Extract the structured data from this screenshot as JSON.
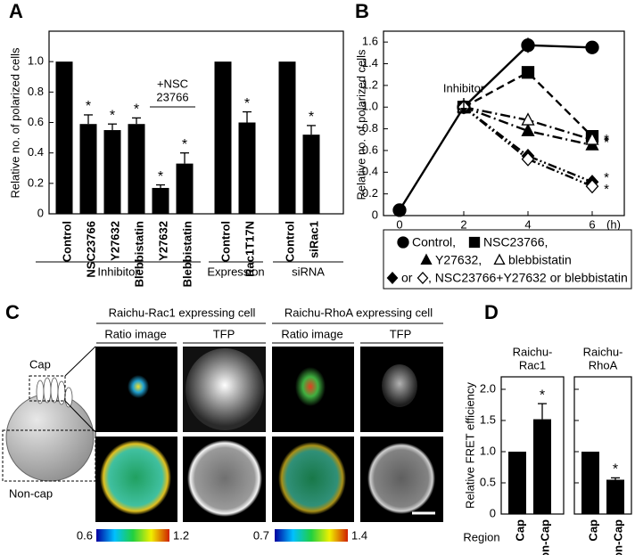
{
  "panel_labels": [
    "A",
    "B",
    "C",
    "D"
  ],
  "chart_data": [
    {
      "type": "bar",
      "y_label": "Relative no. of polarized cells",
      "categories": [
        "Control",
        "NSC23766",
        "Y27632",
        "Blebbistatin",
        "Y27632",
        "Blebbistatin",
        "Control",
        "Rac1T17N",
        "Control",
        "siRac1"
      ],
      "values": [
        1.0,
        0.59,
        0.55,
        0.59,
        0.17,
        0.33,
        1.0,
        0.6,
        1.0,
        0.52
      ],
      "errors": [
        null,
        0.06,
        0.04,
        0.04,
        0.02,
        0.07,
        null,
        0.07,
        null,
        0.06
      ],
      "significance": [
        null,
        "*",
        "*",
        "*",
        "*",
        "*",
        null,
        "*",
        null,
        "*"
      ],
      "color": "#000000",
      "ylim": [
        0,
        1.2
      ],
      "yticks": [
        0,
        0.2,
        0.4,
        0.6,
        0.8,
        {
          "value": 1.0,
          "label": "1.0"
        }
      ],
      "groups": [
        {
          "label": "Inhibitor",
          "count": 6
        },
        {
          "label": "Expression",
          "count": 2
        },
        {
          "label": "siRNA",
          "count": 2
        }
      ],
      "annotation": [
        "+NSC",
        "23766"
      ]
    },
    {
      "type": "line",
      "y_label": "Relative no. of polarized cells",
      "x_label": "(h)",
      "x": [
        0,
        2,
        4,
        6
      ],
      "xlim": [
        -0.5,
        7
      ],
      "xticks": [
        0,
        2,
        4,
        6
      ],
      "ylim": [
        0,
        1.7
      ],
      "yticks": [
        0,
        0.2,
        0.4,
        0.6,
        0.8,
        {
          "value": 1.0,
          "label": "1.0"
        },
        1.2,
        1.4,
        1.6
      ],
      "annotation": "Inhibitor",
      "series": [
        {
          "name": "Control,",
          "marker": "circle",
          "filled": true,
          "dash": "solid",
          "values": [
            0.05,
            1.0,
            1.57,
            1.55
          ],
          "errors": [
            null,
            null,
            0.07,
            0.05
          ],
          "significance": null
        },
        {
          "name": "NSC23766,",
          "marker": "square",
          "filled": true,
          "dash": "dashed",
          "values": [
            null,
            1.0,
            1.32,
            0.73
          ],
          "errors": [
            null,
            null,
            0.04,
            0.05
          ],
          "significance": "*"
        },
        {
          "name": "Y27632,",
          "marker": "triangle",
          "filled": true,
          "dash": "dashdot",
          "values": [
            null,
            1.0,
            0.78,
            0.65
          ],
          "errors": [
            null,
            null,
            null,
            null
          ],
          "significance": "*"
        },
        {
          "name": "blebbistatin",
          "marker": "triangle",
          "filled": false,
          "dash": "dashdot",
          "values": [
            null,
            1.0,
            0.88,
            0.7
          ],
          "errors": [
            null,
            null,
            null,
            null
          ],
          "significance": "*"
        },
        {
          "name": "or",
          "marker": "diamond",
          "filled": true,
          "dash": "dashdotdot",
          "values": [
            null,
            1.0,
            0.55,
            0.31
          ],
          "errors": [
            null,
            null,
            null,
            null
          ],
          "significance": "*"
        },
        {
          "name": ", NSC23766+Y27632 or blebbistatin",
          "marker": "diamond",
          "filled": false,
          "dash": "dashdotdot",
          "values": [
            null,
            1.0,
            0.52,
            0.27
          ],
          "errors": [
            null,
            null,
            null,
            null
          ],
          "significance": "*"
        }
      ]
    },
    {
      "type": "bar",
      "title": [
        "Raichu-",
        "Rac1"
      ],
      "y_label": "Relative FRET efficiency",
      "x_label": "Region",
      "categories": [
        "Cap",
        "Non-Cap"
      ],
      "values": [
        1.0,
        1.52
      ],
      "errors": [
        null,
        0.25
      ],
      "significance": [
        null,
        "*"
      ],
      "color": "#000000",
      "ylim": [
        0,
        2.2
      ],
      "yticks": [
        0,
        0.5,
        {
          "value": 1.0,
          "label": "1.0"
        },
        1.5,
        {
          "value": 2.0,
          "label": "2.0"
        }
      ],
      "tick_labels": true
    },
    {
      "type": "bar",
      "title": [
        "Raichu-",
        "RhoA"
      ],
      "categories": [
        "Cap",
        "Non-Cap"
      ],
      "values": [
        1.0,
        0.55
      ],
      "errors": [
        null,
        0.03
      ],
      "significance": [
        null,
        "*"
      ],
      "color": "#000000",
      "ylim": [
        0,
        2.2
      ],
      "yticks": [
        0,
        0.5,
        1.0,
        1.5,
        2.0
      ],
      "tick_labels": false
    }
  ],
  "panel_c": {
    "sensors": [
      "Raichu-Rac1 expressing cell",
      "Raichu-RhoA expressing cell"
    ],
    "columns": [
      "Ratio image",
      "TFP",
      "Ratio image",
      "TFP"
    ],
    "regions": [
      "Cap",
      "Non-cap"
    ],
    "colorbars": [
      [
        "0.6",
        "1.2"
      ],
      [
        "0.7",
        "1.4"
      ]
    ]
  }
}
